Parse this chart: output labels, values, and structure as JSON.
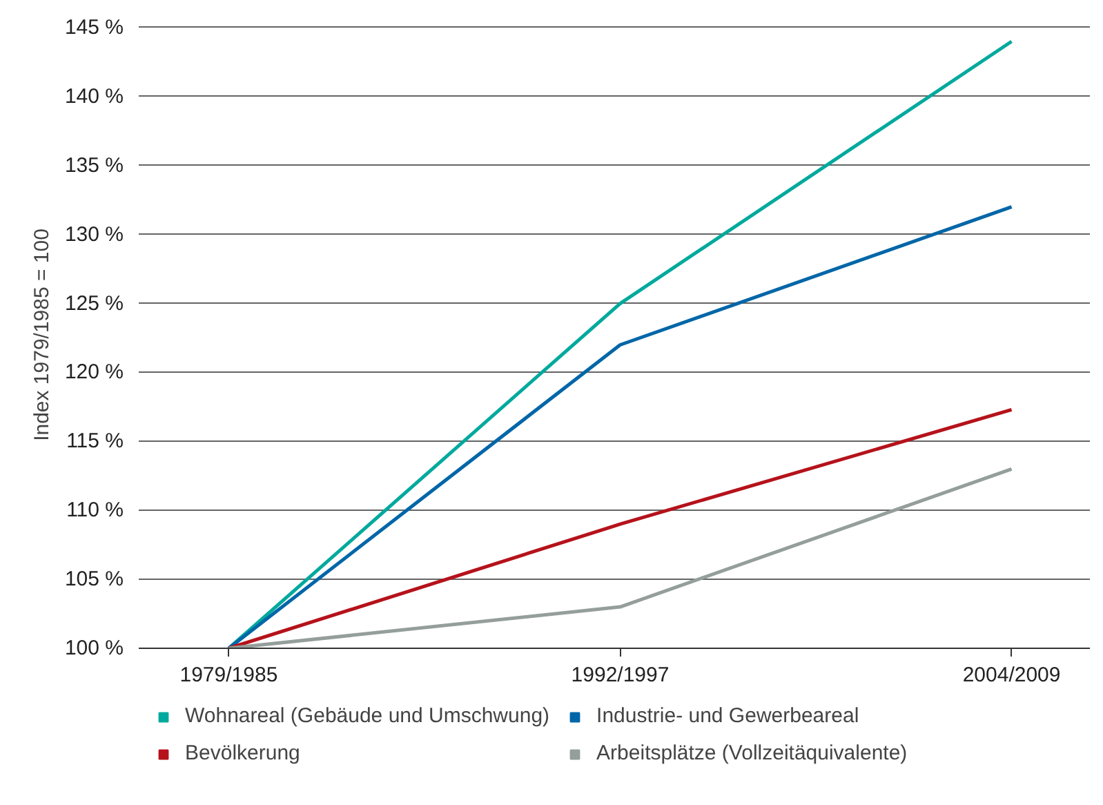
{
  "chart_data": {
    "type": "line",
    "ylabel": "Index 1979/1985 = 100",
    "categories": [
      "1979/1985",
      "1992/1997",
      "2004/2009"
    ],
    "series": [
      {
        "name": "Wohnareal (Gebäude und Umschwung)",
        "color": "#00a99d",
        "values": [
          100,
          125,
          144
        ]
      },
      {
        "name": "Industrie- und Gewerbeareal",
        "color": "#0066a8",
        "values": [
          100,
          122,
          132
        ]
      },
      {
        "name": "Bevölkerung",
        "color": "#b5121b",
        "values": [
          100,
          109,
          117.3
        ]
      },
      {
        "name": "Arbeitsplätze (Vollzeitäquivalente)",
        "color": "#949e9a",
        "values": [
          100,
          103,
          113
        ]
      }
    ],
    "ylim": [
      100,
      145
    ],
    "yticks": [
      {
        "value": 100,
        "label": "100 %"
      },
      {
        "value": 105,
        "label": "105 %"
      },
      {
        "value": 110,
        "label": "110 %"
      },
      {
        "value": 115,
        "label": "115 %"
      },
      {
        "value": 120,
        "label": "120 %"
      },
      {
        "value": 125,
        "label": "125 %"
      },
      {
        "value": 130,
        "label": "130 %"
      },
      {
        "value": 135,
        "label": "135 %"
      },
      {
        "value": 140,
        "label": "140 %"
      },
      {
        "value": 145,
        "label": "145 %"
      }
    ],
    "grid": "y",
    "legend": "bottom",
    "marker": "none",
    "line_style": "solid"
  }
}
